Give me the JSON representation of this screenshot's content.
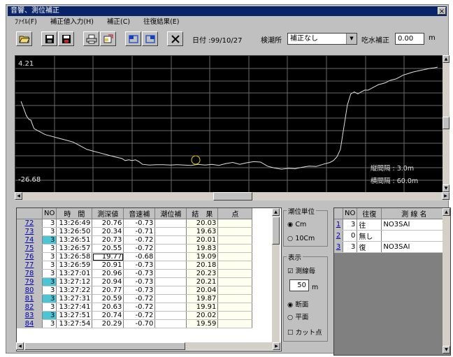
{
  "window": {
    "title": "音響、測位補正",
    "close_label": "×"
  },
  "menu": [
    "ﾌｧｲﾙ(F)",
    "補正値入力(H)",
    "補正(C)",
    "往復結果(E)"
  ],
  "toolbar": {
    "icons": [
      "open-folder-icon",
      "save-icon",
      "save-red-icon",
      "print-icon",
      "export-icon",
      "window-a-icon",
      "window-b-icon",
      "close-x-icon"
    ],
    "date_label": "日付 :99/10/27",
    "station_label": "検潮所",
    "station_value": "補正なし",
    "draft_label": "吃水補正",
    "draft_value": "0.00",
    "draft_unit": "m"
  },
  "chart_data": {
    "type": "line",
    "y_max_label": "4.21",
    "y_min_label": "-26.68",
    "ylim": [
      -26.68,
      4.21
    ],
    "x": [
      0,
      4,
      8,
      12,
      14,
      16,
      18,
      18.5,
      19,
      25,
      35,
      45,
      55,
      65,
      75,
      85,
      95,
      105,
      115,
      125,
      135,
      145,
      150,
      155,
      160,
      165,
      170,
      175,
      185,
      195,
      205,
      215,
      225,
      235,
      245,
      255,
      265,
      275,
      285,
      295,
      305,
      315,
      325,
      335,
      345,
      355,
      365,
      375,
      385,
      395,
      405,
      415,
      425,
      435,
      445,
      450,
      455,
      460,
      465,
      470,
      475,
      480,
      485,
      490,
      495,
      500,
      505,
      510,
      515,
      520,
      525,
      530,
      535,
      540,
      545,
      550,
      555,
      560,
      565,
      570,
      575,
      580,
      585,
      590,
      595,
      600
    ],
    "y": [
      -5,
      -7,
      -9,
      -10,
      -10,
      -11,
      -12,
      -12.2,
      -12.4,
      -13,
      -14,
      -14.5,
      -15,
      -15.5,
      -16,
      -17,
      -18,
      -18.5,
      -19,
      -19.5,
      -20,
      -20.4,
      -21,
      -20.8,
      -21,
      -20.8,
      -21.3,
      -22,
      -22.2,
      -22.1,
      -22.1,
      -22.2,
      -22.1,
      -22.2,
      -22.3,
      -22.0,
      -22.2,
      -22.0,
      -22.3,
      -21.8,
      -21.5,
      -22.0,
      -21.6,
      -21.3,
      -21.4,
      -22.5,
      -23.0,
      -23.3,
      -23.1,
      -23.2,
      -22.8,
      -22.5,
      -22.6,
      -22.0,
      -21.5,
      -21.0,
      -20.0,
      -18.0,
      -12.0,
      -6.0,
      -3.0,
      -2.5,
      -3.0,
      -2.5,
      -2.0,
      -2.0,
      -1.5,
      -1.0,
      -0.5,
      -0.3,
      0,
      0.5,
      0.8,
      1.0,
      1.5,
      2.0,
      2.3,
      2.6,
      2.9,
      3.1,
      3.3,
      3.5,
      3.7,
      3.9,
      4.0,
      4.2
    ],
    "annotations": [
      "縦間隔 : 3.0m",
      "横間隔 : 60.0m"
    ]
  },
  "table": {
    "headers": [
      "NO",
      "時　間",
      "測深値",
      "音速補",
      "潮位補",
      "結　果",
      "点"
    ],
    "rows": [
      {
        "id": "72",
        "no": "3",
        "time": "13:26:49",
        "depth": "20.76",
        "sound": "-0.73",
        "tide": "",
        "result": "20.03",
        "hl": false
      },
      {
        "id": "73",
        "no": "3",
        "time": "13:26:50",
        "depth": "20.34",
        "sound": "-0.71",
        "tide": "",
        "result": "19.63",
        "hl": false
      },
      {
        "id": "74",
        "no": "3",
        "time": "13:26:51",
        "depth": "20.73",
        "sound": "-0.72",
        "tide": "",
        "result": "20.01",
        "hl": true
      },
      {
        "id": "75",
        "no": "3",
        "time": "13:26:57",
        "depth": "20.55",
        "sound": "-0.72",
        "tide": "",
        "result": "19.83",
        "hl": false
      },
      {
        "id": "76",
        "no": "3",
        "time": "13:26:58",
        "depth": "19.77",
        "sound": "-0.68",
        "tide": "",
        "result": "19.09",
        "hl": false
      },
      {
        "id": "77",
        "no": "3",
        "time": "13:26:59",
        "depth": "20.91",
        "sound": "-0.73",
        "tide": "",
        "result": "20.18",
        "hl": false
      },
      {
        "id": "78",
        "no": "3",
        "time": "13:27:01",
        "depth": "20.96",
        "sound": "-0.73",
        "tide": "",
        "result": "20.23",
        "hl": false
      },
      {
        "id": "79",
        "no": "3",
        "time": "13:27:12",
        "depth": "20.94",
        "sound": "-0.73",
        "tide": "",
        "result": "20.21",
        "hl": true
      },
      {
        "id": "80",
        "no": "3",
        "time": "13:27:22",
        "depth": "20.77",
        "sound": "-0.73",
        "tide": "",
        "result": "20.04",
        "hl": false
      },
      {
        "id": "81",
        "no": "3",
        "time": "13:27:31",
        "depth": "20.59",
        "sound": "-0.72",
        "tide": "",
        "result": "19.87",
        "hl": true
      },
      {
        "id": "82",
        "no": "3",
        "time": "13:27:41",
        "depth": "20.63",
        "sound": "-0.72",
        "tide": "",
        "result": "19.91",
        "hl": false
      },
      {
        "id": "83",
        "no": "3",
        "time": "13:27:51",
        "depth": "20.74",
        "sound": "-0.72",
        "tide": "",
        "result": "20.02",
        "hl": true
      },
      {
        "id": "84",
        "no": "3",
        "time": "13:27:54",
        "depth": "20.29",
        "sound": "-0.70",
        "tide": "",
        "result": "19.59",
        "hl": false
      }
    ]
  },
  "tide_unit": {
    "title": "潮位単位",
    "opt1": "Cm",
    "opt2": "10Cm"
  },
  "display": {
    "title": "表示",
    "survey_line": "測線毎",
    "interval_value": "50",
    "interval_unit": "m",
    "section": "断面",
    "plane": "平面",
    "cut": "カット点"
  },
  "lines_table": {
    "headers": [
      "NO",
      "往復",
      "測 線 名"
    ],
    "rows": [
      {
        "idx": "1",
        "no": "3",
        "dir": "往",
        "name": "NO3SAI"
      },
      {
        "idx": "2",
        "no": "0",
        "dir": "無し",
        "name": ""
      },
      {
        "idx": "3",
        "no": "3",
        "dir": "復",
        "name": "NO3SAI"
      }
    ]
  }
}
